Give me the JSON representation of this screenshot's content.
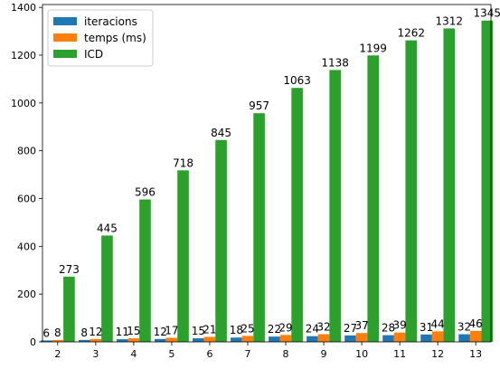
{
  "chart_data": {
    "type": "bar",
    "categories": [
      "2",
      "3",
      "4",
      "5",
      "6",
      "7",
      "8",
      "9",
      "10",
      "11",
      "12",
      "13"
    ],
    "series": [
      {
        "name": "iteracions",
        "color": "#1f77b4",
        "values": [
          6,
          8,
          11,
          12,
          15,
          18,
          22,
          24,
          27,
          28,
          31,
          32
        ]
      },
      {
        "name": "temps (ms)",
        "color": "#ff7f0e",
        "values": [
          8,
          12,
          15,
          17,
          21,
          25,
          29,
          32,
          37,
          39,
          44,
          46
        ]
      },
      {
        "name": "ICD",
        "color": "#2ca02c",
        "values": [
          273,
          445,
          596,
          718,
          845,
          957,
          1063,
          1138,
          1199,
          1262,
          1312,
          1345
        ]
      }
    ],
    "yticks": [
      0,
      200,
      400,
      600,
      800,
      1000,
      1200,
      1400
    ],
    "ylim": [
      0,
      1412
    ],
    "xlim": [
      1.6,
      13.4
    ],
    "legend_position": "top-left",
    "grid": false
  }
}
